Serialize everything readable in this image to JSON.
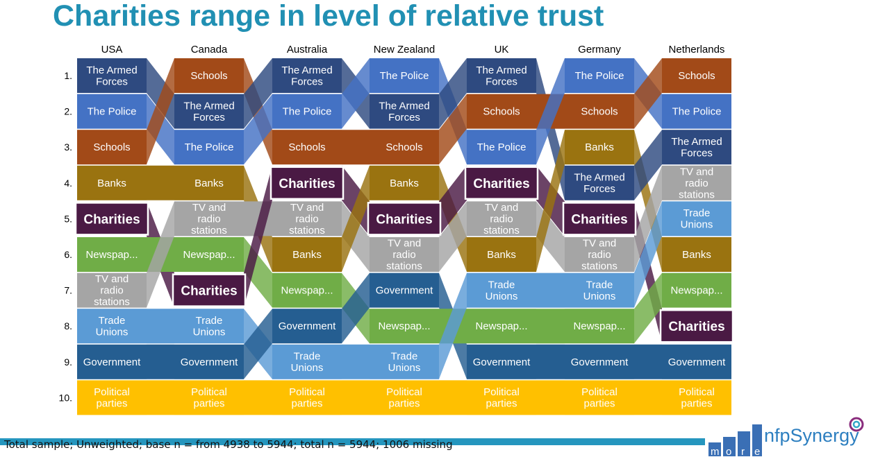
{
  "title": "Charities range in level of relative trust",
  "footnote": "Total sample; Unweighted; base n = from 4938 to 5944; total n = 5944; 1006 missing",
  "logo": {
    "word": "more",
    "letters": [
      "m",
      "o",
      "r",
      "e"
    ],
    "name": "nfpSynergy"
  },
  "chart_data": {
    "type": "table",
    "ranks": [
      "1.",
      "2.",
      "3.",
      "4.",
      "5.",
      "6.",
      "7.",
      "8.",
      "9.",
      "10."
    ],
    "countries": [
      "USA",
      "Canada",
      "Australia",
      "New Zealand",
      "UK",
      "Germany",
      "Netherlands"
    ],
    "institutions": {
      "armed": {
        "label": "The Armed Forces",
        "lines": [
          "The Armed",
          "Forces"
        ],
        "color": "#2e4a80"
      },
      "police": {
        "label": "The Police",
        "lines": [
          "The Police"
        ],
        "color": "#4472c4"
      },
      "schools": {
        "label": "Schools",
        "lines": [
          "Schools"
        ],
        "color": "#a24a18"
      },
      "banks": {
        "label": "Banks",
        "lines": [
          "Banks"
        ],
        "color": "#9a7310"
      },
      "charities": {
        "label": "Charities",
        "lines": [
          "Charities"
        ],
        "color": "#4a1a44"
      },
      "tv": {
        "label": "TV and radio stations",
        "lines": [
          "TV and",
          "radio",
          "stations"
        ],
        "color": "#a5a5a5"
      },
      "news": {
        "label": "Newspap...",
        "lines": [
          "Newspap..."
        ],
        "color": "#70ad47"
      },
      "unions": {
        "label": "Trade Unions",
        "lines": [
          "Trade",
          "Unions"
        ],
        "color": "#5b9bd5"
      },
      "gov": {
        "label": "Government",
        "lines": [
          "Government"
        ],
        "color": "#255e91"
      },
      "parties": {
        "label": "Political parties",
        "lines": [
          "Political",
          "parties"
        ],
        "color": "#ffc000"
      }
    },
    "rankings": {
      "USA": [
        "armed",
        "police",
        "schools",
        "banks",
        "charities",
        "news",
        "tv",
        "unions",
        "gov",
        "parties"
      ],
      "Canada": [
        "schools",
        "armed",
        "police",
        "banks",
        "tv",
        "news",
        "charities",
        "unions",
        "gov",
        "parties"
      ],
      "Australia": [
        "armed",
        "police",
        "schools",
        "charities",
        "tv",
        "banks",
        "news",
        "gov",
        "unions",
        "parties"
      ],
      "New Zealand": [
        "police",
        "armed",
        "schools",
        "banks",
        "charities",
        "tv",
        "gov",
        "news",
        "unions",
        "parties"
      ],
      "UK": [
        "armed",
        "schools",
        "police",
        "charities",
        "tv",
        "banks",
        "unions",
        "news",
        "gov",
        "parties"
      ],
      "Germany": [
        "police",
        "schools",
        "banks",
        "armed",
        "charities",
        "tv",
        "unions",
        "news",
        "gov",
        "parties"
      ],
      "Netherlands": [
        "schools",
        "police",
        "armed",
        "tv",
        "unions",
        "banks",
        "news",
        "charities",
        "gov",
        "parties"
      ]
    },
    "highlight": "charities"
  }
}
